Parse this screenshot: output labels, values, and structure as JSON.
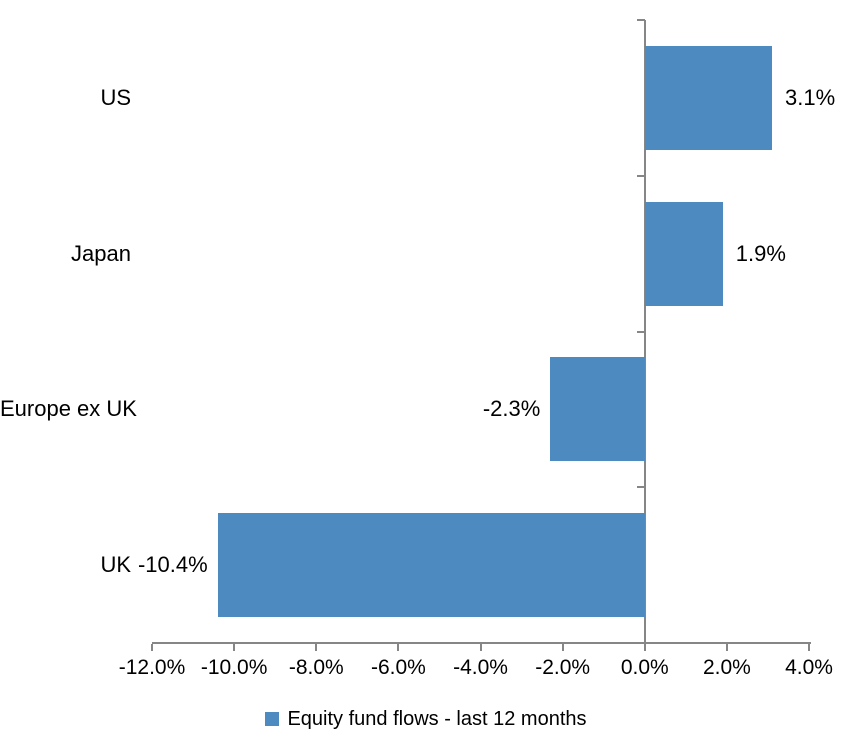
{
  "chart_data": {
    "type": "bar",
    "orientation": "horizontal",
    "title": "",
    "categories": [
      "US",
      "Japan",
      "Europe ex UK",
      "UK"
    ],
    "series": [
      {
        "name": "Equity fund flows - last 12 months",
        "values": [
          3.1,
          1.9,
          -2.3,
          -10.4
        ],
        "value_labels": [
          "3.1%",
          "1.9%",
          "-2.3%",
          "-10.4%"
        ],
        "color": "#4D8AC0"
      }
    ],
    "xlim": [
      -12,
      4
    ],
    "x_ticks": [
      -12,
      -10,
      -8,
      -6,
      -4,
      -2,
      0,
      2,
      4
    ],
    "x_tick_labels": [
      "-12.0%",
      "-10.0%",
      "-8.0%",
      "-6.0%",
      "-4.0%",
      "-2.0%",
      "0.0%",
      "2.0%",
      "4.0%"
    ],
    "grid": false,
    "gridlines": "none",
    "legend": {
      "position": "bottom",
      "label": "Equity fund flows - last 12 months",
      "swatch_color": "#4D8AC0"
    },
    "axis_color": "#868686",
    "text_color": "#000000",
    "background": "#FFFFFF"
  }
}
